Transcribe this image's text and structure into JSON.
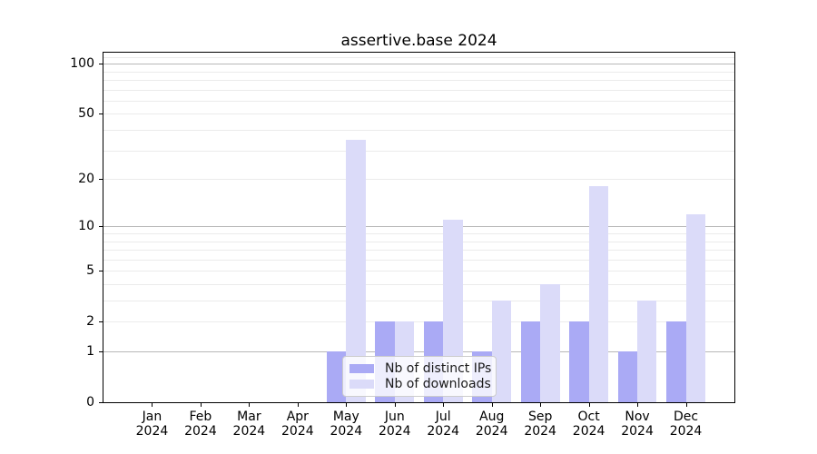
{
  "chart_data": {
    "type": "bar",
    "title": "assertive.base 2024",
    "categories": [
      "Jan 2024",
      "Feb 2024",
      "Mar 2024",
      "Apr 2024",
      "May 2024",
      "Jun 2024",
      "Jul 2024",
      "Aug 2024",
      "Sep 2024",
      "Oct 2024",
      "Nov 2024",
      "Dec 2024"
    ],
    "series": [
      {
        "name": "Nb of distinct IPs",
        "color": "#aaaaf5",
        "values": [
          0,
          0,
          0,
          0,
          1,
          2,
          2,
          1,
          2,
          2,
          1,
          2
        ]
      },
      {
        "name": "Nb of downloads",
        "color": "#dbdbf9",
        "values": [
          0,
          0,
          0,
          0,
          35,
          2,
          11,
          3,
          4,
          18,
          3,
          12
        ]
      }
    ],
    "yscale": "log1p",
    "y_ticks": [
      100,
      50,
      20,
      10,
      5,
      2,
      1,
      0
    ],
    "ylim": [
      0,
      119
    ],
    "xlabel": "",
    "ylabel": "",
    "grid": "horizontal",
    "legend_position": "lower center"
  }
}
